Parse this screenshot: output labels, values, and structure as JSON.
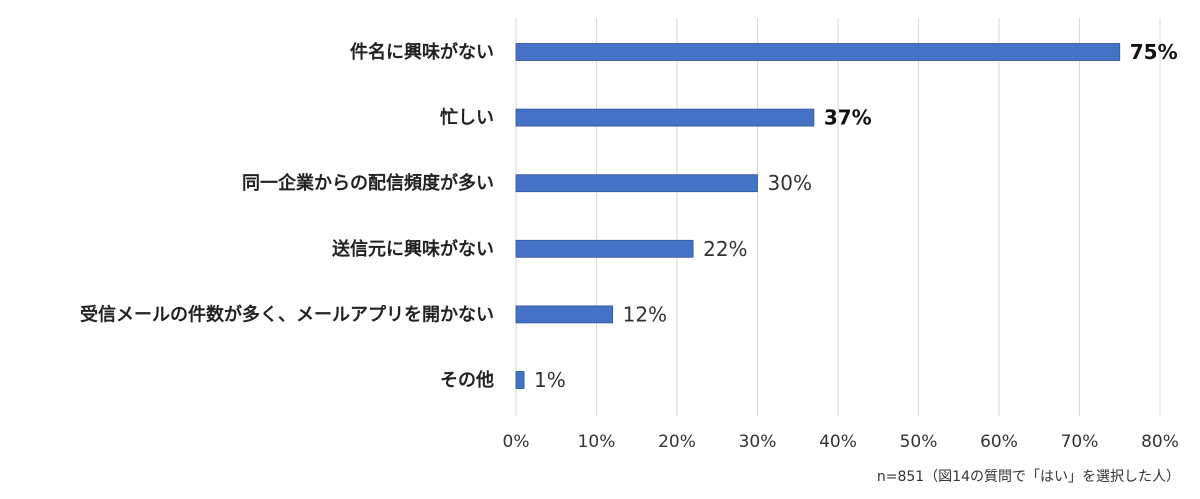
{
  "chart_data": {
    "type": "bar",
    "orientation": "horizontal",
    "categories": [
      "件名に興味がない",
      "忙しい",
      "同一企業からの配信頻度が多い",
      "送信元に興味がない",
      "受信メールの件数が多く、メールアプリを開かない",
      "その他"
    ],
    "values": [
      75,
      37,
      30,
      22,
      12,
      1
    ],
    "data_labels": [
      "75%",
      "37%",
      "30%",
      "22%",
      "12%",
      "1%"
    ],
    "highlighted": [
      true,
      true,
      false,
      false,
      false,
      false
    ],
    "xlim": [
      0,
      80
    ],
    "ticks": [
      0,
      10,
      20,
      30,
      40,
      50,
      60,
      70,
      80
    ],
    "tick_labels": [
      "0%",
      "10%",
      "20%",
      "30%",
      "40%",
      "50%",
      "60%",
      "70%",
      "80%"
    ],
    "grid": "vertical",
    "bar_color": "#4472c4",
    "note": "n=851（図14の質問で「はい」を選択した人）"
  }
}
